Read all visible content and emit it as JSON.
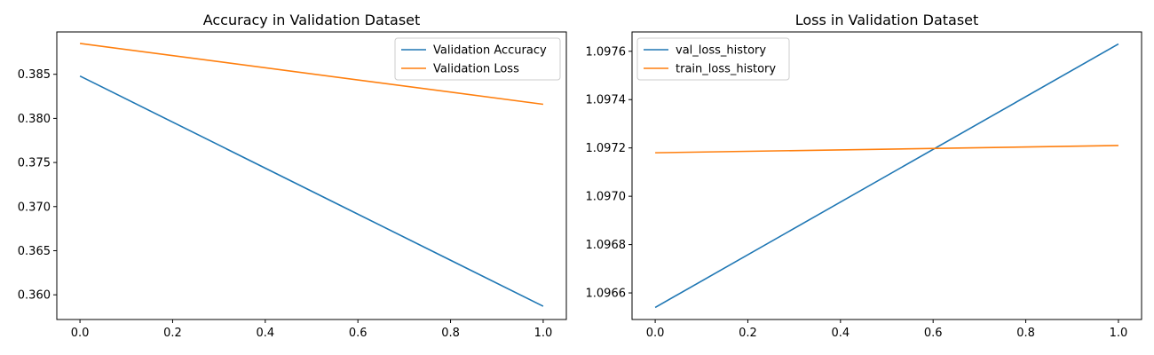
{
  "chart_data": [
    {
      "type": "line",
      "title": "Accuracy in Validation Dataset",
      "xlabel": "",
      "ylabel": "",
      "x": [
        0.0,
        1.0
      ],
      "xlim": [
        -0.05,
        1.05
      ],
      "ylim": [
        0.3572,
        0.3898
      ],
      "xticks": [
        "0.0",
        "0.2",
        "0.4",
        "0.6",
        "0.8",
        "1.0"
      ],
      "yticks": [
        "0.360",
        "0.365",
        "0.370",
        "0.375",
        "0.380",
        "0.385"
      ],
      "grid": false,
      "legend_position": "upper right",
      "series": [
        {
          "name": "Validation Accuracy",
          "color": "#1f77b4",
          "values": [
            0.3848,
            0.3587
          ]
        },
        {
          "name": "Validation Loss",
          "color": "#ff7f0e",
          "values": [
            0.3885,
            0.3816
          ]
        }
      ]
    },
    {
      "type": "line",
      "title": "Loss in Validation Dataset",
      "xlabel": "",
      "ylabel": "",
      "x": [
        0.0,
        1.0
      ],
      "xlim": [
        -0.05,
        1.05
      ],
      "ylim": [
        1.09649,
        1.09768
      ],
      "xticks": [
        "0.0",
        "0.2",
        "0.4",
        "0.6",
        "0.8",
        "1.0"
      ],
      "yticks": [
        "1.0966",
        "1.0968",
        "1.0970",
        "1.0972",
        "1.0974",
        "1.0976"
      ],
      "grid": false,
      "legend_position": "upper left",
      "series": [
        {
          "name": "val_loss_history",
          "color": "#1f77b4",
          "values": [
            1.09654,
            1.09763
          ]
        },
        {
          "name": "train_loss_history",
          "color": "#ff7f0e",
          "values": [
            1.09718,
            1.09721
          ]
        }
      ]
    }
  ]
}
